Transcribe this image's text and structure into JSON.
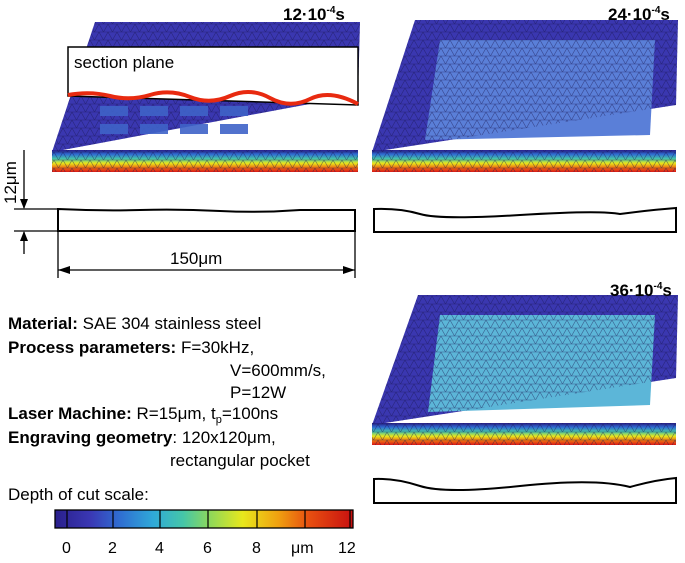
{
  "panels": [
    {
      "time_base": "12·10",
      "time_exp": "-4",
      "time_unit": "s"
    },
    {
      "time_base": "24·10",
      "time_exp": "-4",
      "time_unit": "s"
    },
    {
      "time_base": "36·10",
      "time_exp": "-4",
      "time_unit": "s"
    }
  ],
  "section_plane_label": "section plane",
  "dimensions": {
    "height": "12μm",
    "width": "150μm"
  },
  "info": {
    "material_key": "Material:",
    "material_val": " SAE 304 stainless steel",
    "process_key": "Process parameters:",
    "process_val1": " F=30kHz,",
    "process_val2": "V=600mm/s,",
    "process_val3": "P=12W",
    "laser_key": "Laser Machine:",
    "laser_val_a": " R=15μm, t",
    "laser_val_sub": "p",
    "laser_val_b": "=100ns",
    "geometry_key": "Engraving geometry",
    "geometry_val1": ": 120x120μm,",
    "geometry_val2": "rectangular pocket"
  },
  "scale": {
    "title": "Depth of cut scale:",
    "ticks": [
      "0",
      "2",
      "4",
      "6",
      "8",
      "μm",
      "12"
    ],
    "colors": [
      "#2a1f8c",
      "#3a38b4",
      "#2f6fd2",
      "#2fa9d8",
      "#45c6a8",
      "#8ed85a",
      "#e8e81c",
      "#f0a010",
      "#e85010",
      "#d81818",
      "#c81010"
    ]
  }
}
